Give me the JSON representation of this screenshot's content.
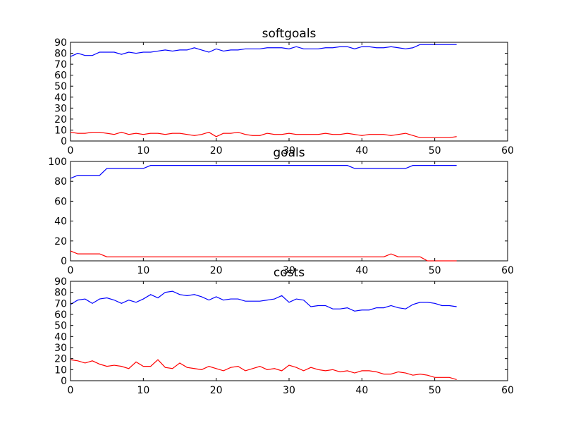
{
  "chart_data": [
    {
      "type": "line",
      "title": "softgoals",
      "xlim": [
        0,
        60
      ],
      "ylim": [
        0,
        90
      ],
      "xticks": [
        0,
        10,
        20,
        30,
        40,
        50,
        60
      ],
      "yticks": [
        0,
        10,
        20,
        30,
        40,
        50,
        60,
        70,
        80,
        90
      ],
      "grid": false,
      "x": [
        0,
        1,
        2,
        3,
        4,
        5,
        6,
        7,
        8,
        9,
        10,
        11,
        12,
        13,
        14,
        15,
        16,
        17,
        18,
        19,
        20,
        21,
        22,
        23,
        24,
        25,
        26,
        27,
        28,
        29,
        30,
        31,
        32,
        33,
        34,
        35,
        36,
        37,
        38,
        39,
        40,
        41,
        42,
        43,
        44,
        45,
        46,
        47,
        48,
        49,
        50,
        51,
        52,
        53
      ],
      "series": [
        {
          "color": "#0000ff",
          "values": [
            77,
            80,
            78,
            78,
            81,
            81,
            81,
            79,
            81,
            80,
            81,
            81,
            82,
            83,
            82,
            83,
            83,
            85,
            83,
            81,
            84,
            82,
            83,
            83,
            84,
            84,
            84,
            85,
            85,
            85,
            84,
            86,
            84,
            84,
            84,
            85,
            85,
            86,
            86,
            84,
            86,
            86,
            85,
            85,
            86,
            85,
            84,
            85,
            88,
            88,
            88,
            88,
            88,
            88
          ]
        },
        {
          "color": "#ff0000",
          "values": [
            8,
            7,
            7,
            8,
            8,
            7,
            6,
            8,
            6,
            7,
            6,
            7,
            7,
            6,
            7,
            7,
            6,
            5,
            6,
            8,
            4,
            7,
            7,
            8,
            6,
            5,
            5,
            7,
            6,
            6,
            7,
            6,
            6,
            6,
            6,
            7,
            6,
            6,
            7,
            6,
            5,
            6,
            6,
            6,
            5,
            6,
            7,
            5,
            3,
            3,
            3,
            3,
            3,
            4
          ]
        }
      ]
    },
    {
      "type": "line",
      "title": "goals",
      "xlim": [
        0,
        60
      ],
      "ylim": [
        0,
        100
      ],
      "xticks": [
        0,
        10,
        20,
        30,
        40,
        50,
        60
      ],
      "yticks": [
        0,
        20,
        40,
        60,
        80,
        100
      ],
      "grid": false,
      "x": [
        0,
        1,
        2,
        3,
        4,
        5,
        6,
        7,
        8,
        9,
        10,
        11,
        12,
        13,
        14,
        15,
        16,
        17,
        18,
        19,
        20,
        21,
        22,
        23,
        24,
        25,
        26,
        27,
        28,
        29,
        30,
        31,
        32,
        33,
        34,
        35,
        36,
        37,
        38,
        39,
        40,
        41,
        42,
        43,
        44,
        45,
        46,
        47,
        48,
        49,
        50,
        51,
        52,
        53
      ],
      "series": [
        {
          "color": "#0000ff",
          "values": [
            83,
            86,
            86,
            86,
            86,
            93,
            93,
            93,
            93,
            93,
            93,
            96,
            96,
            96,
            96,
            96,
            96,
            96,
            96,
            96,
            96,
            96,
            96,
            96,
            96,
            96,
            96,
            96,
            96,
            96,
            96,
            96,
            96,
            96,
            96,
            96,
            96,
            96,
            96,
            93,
            93,
            93,
            93,
            93,
            93,
            93,
            93,
            96,
            96,
            96,
            96,
            96,
            96,
            96
          ]
        },
        {
          "color": "#ff0000",
          "values": [
            10,
            7,
            7,
            7,
            7,
            4,
            4,
            4,
            4,
            4,
            4,
            4,
            4,
            4,
            4,
            4,
            4,
            4,
            4,
            4,
            4,
            4,
            4,
            4,
            4,
            4,
            4,
            4,
            4,
            4,
            4,
            4,
            4,
            4,
            4,
            4,
            4,
            4,
            4,
            4,
            4,
            4,
            4,
            4,
            7,
            4,
            4,
            4,
            4,
            0,
            0,
            0,
            0,
            0
          ]
        }
      ]
    },
    {
      "type": "line",
      "title": "costs",
      "xlim": [
        0,
        60
      ],
      "ylim": [
        0,
        90
      ],
      "xticks": [
        0,
        10,
        20,
        30,
        40,
        50,
        60
      ],
      "yticks": [
        0,
        10,
        20,
        30,
        40,
        50,
        60,
        70,
        80,
        90
      ],
      "grid": false,
      "x": [
        0,
        1,
        2,
        3,
        4,
        5,
        6,
        7,
        8,
        9,
        10,
        11,
        12,
        13,
        14,
        15,
        16,
        17,
        18,
        19,
        20,
        21,
        22,
        23,
        24,
        25,
        26,
        27,
        28,
        29,
        30,
        31,
        32,
        33,
        34,
        35,
        36,
        37,
        38,
        39,
        40,
        41,
        42,
        43,
        44,
        45,
        46,
        47,
        48,
        49,
        50,
        51,
        52,
        53
      ],
      "series": [
        {
          "color": "#0000ff",
          "values": [
            69,
            73,
            74,
            70,
            74,
            75,
            73,
            70,
            73,
            71,
            74,
            78,
            75,
            80,
            81,
            78,
            77,
            78,
            76,
            73,
            76,
            73,
            74,
            74,
            72,
            72,
            72,
            73,
            74,
            77,
            71,
            74,
            73,
            67,
            68,
            68,
            65,
            65,
            66,
            63,
            64,
            64,
            66,
            66,
            68,
            66,
            65,
            69,
            71,
            71,
            70,
            68,
            68,
            67
          ]
        },
        {
          "color": "#ff0000",
          "values": [
            19,
            18,
            16,
            18,
            15,
            13,
            14,
            13,
            11,
            17,
            13,
            13,
            19,
            12,
            11,
            16,
            12,
            11,
            10,
            13,
            11,
            9,
            12,
            13,
            9,
            11,
            13,
            10,
            11,
            9,
            14,
            12,
            9,
            12,
            10,
            9,
            10,
            8,
            9,
            7,
            9,
            9,
            8,
            6,
            6,
            8,
            7,
            5,
            6,
            5,
            3,
            3,
            3,
            1
          ]
        }
      ]
    }
  ]
}
